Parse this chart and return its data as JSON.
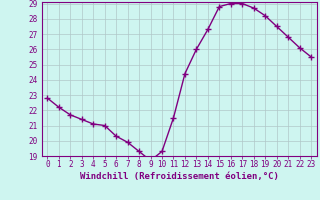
{
  "x": [
    0,
    1,
    2,
    3,
    4,
    5,
    6,
    7,
    8,
    9,
    10,
    11,
    12,
    13,
    14,
    15,
    16,
    17,
    18,
    19,
    20,
    21,
    22,
    23
  ],
  "y": [
    22.8,
    22.2,
    21.7,
    21.4,
    21.1,
    21.0,
    20.3,
    19.9,
    19.3,
    18.7,
    19.3,
    21.5,
    24.4,
    26.0,
    27.3,
    28.8,
    29.0,
    29.0,
    28.7,
    28.2,
    27.5,
    26.8,
    26.1,
    25.5
  ],
  "line_color": "#800080",
  "marker": "+",
  "marker_size": 4,
  "bg_color": "#cef5f0",
  "grid_color": "#b0c8c8",
  "xlabel": "Windchill (Refroidissement éolien,°C)",
  "ylim": [
    19,
    29
  ],
  "xlim": [
    -0.5,
    23.5
  ],
  "yticks": [
    19,
    20,
    21,
    22,
    23,
    24,
    25,
    26,
    27,
    28,
    29
  ],
  "xticks": [
    0,
    1,
    2,
    3,
    4,
    5,
    6,
    7,
    8,
    9,
    10,
    11,
    12,
    13,
    14,
    15,
    16,
    17,
    18,
    19,
    20,
    21,
    22,
    23
  ],
  "tick_fontsize": 5.5,
  "xlabel_fontsize": 6.5,
  "spine_color": "#800080",
  "line_width": 1.0,
  "marker_edge_width": 1.0
}
